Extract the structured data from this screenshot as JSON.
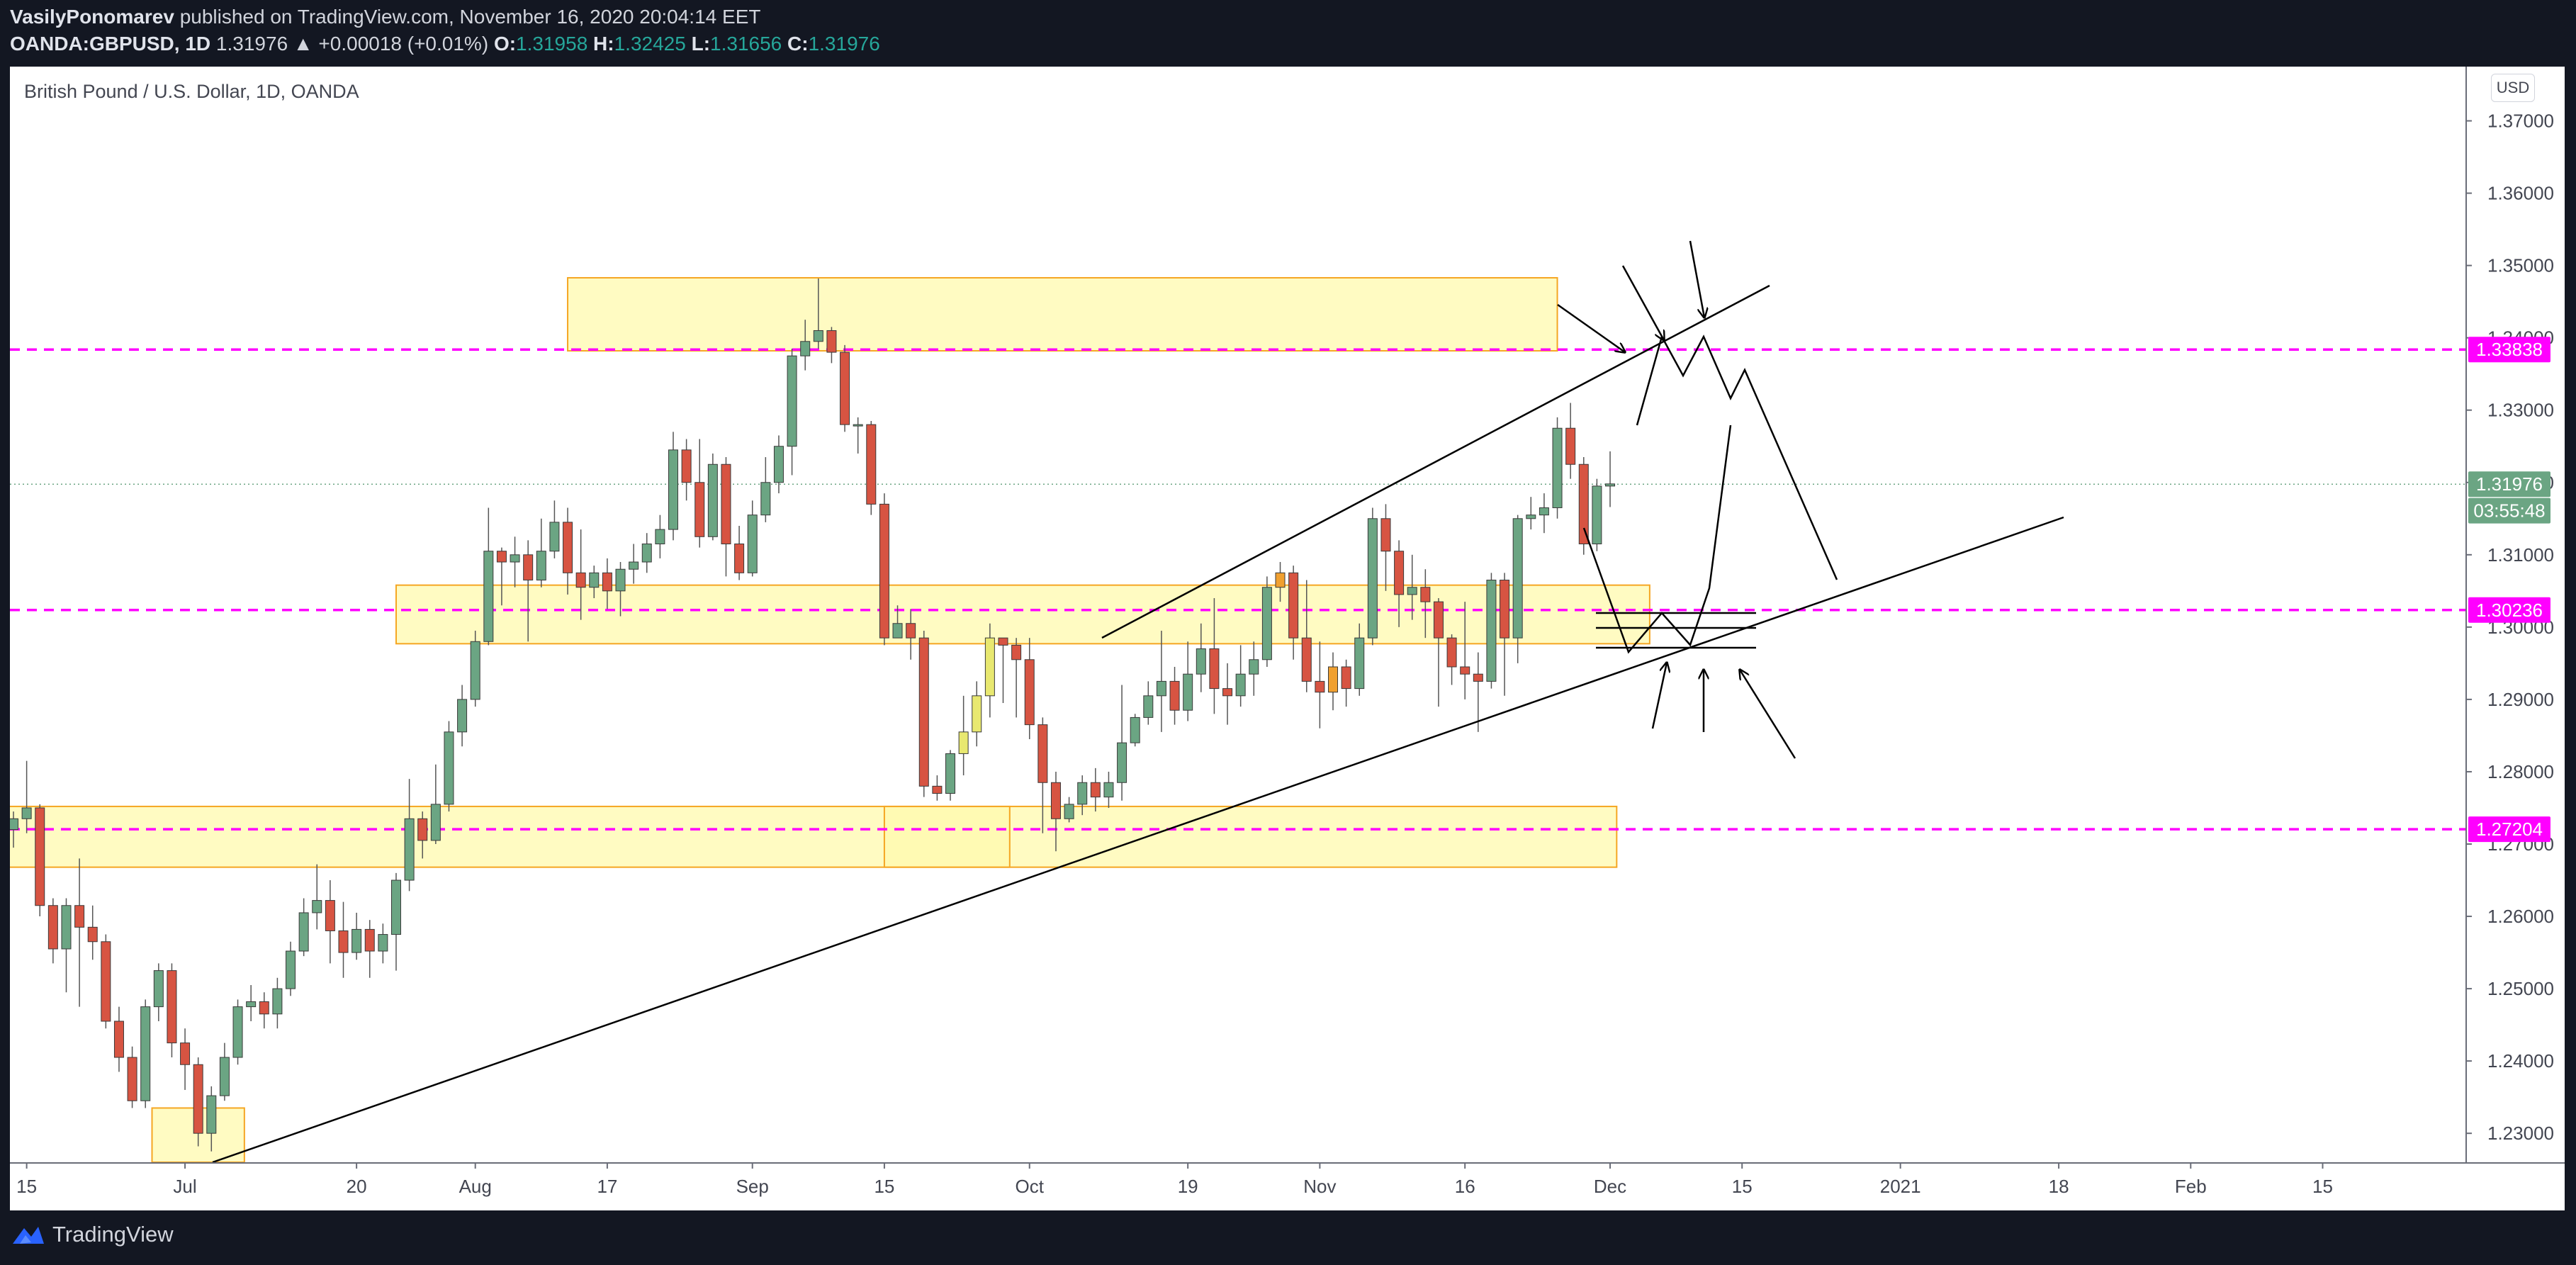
{
  "header": {
    "author": "VasilyPonomarev",
    "published": "published on TradingView.com, November 16, 2020 20:04:14 EET",
    "symbol": "OANDA:GBPUSD, 1D",
    "last": "1.31976",
    "change": "▲ +0.00018 (+0.01%)",
    "o_label": "O:",
    "o": "1.31958",
    "h_label": "H:",
    "h": "1.32425",
    "l_label": "L:",
    "l": "1.31656",
    "c_label": "C:",
    "c": "1.31976"
  },
  "chart_title": "British Pound / U.S. Dollar, 1D, OANDA",
  "currency_button": "USD",
  "footer": {
    "brand": "TradingView"
  },
  "colors": {
    "up": "#6ba583",
    "down": "#d75442",
    "accent_dashed": "#ff00ff",
    "zone_fill": "#fff9ad",
    "zone_border": "#f5a623",
    "orange_candle": "#f0a030",
    "yellow_candle": "#e8e870"
  },
  "chart_data": {
    "type": "candlestick",
    "ylim": [
      1.226,
      1.3775
    ],
    "y_ticks": [
      "1.23000",
      "1.24000",
      "1.25000",
      "1.26000",
      "1.27000",
      "1.28000",
      "1.29000",
      "1.30000",
      "1.31000",
      "1.32000",
      "1.33000",
      "1.34000",
      "1.35000",
      "1.36000",
      "1.37000"
    ],
    "x_ticks": [
      {
        "label": "15",
        "bar": 1
      },
      {
        "label": "Jul",
        "bar": 13
      },
      {
        "label": "20",
        "bar": 26
      },
      {
        "label": "Aug",
        "bar": 35
      },
      {
        "label": "17",
        "bar": 45
      },
      {
        "label": "Sep",
        "bar": 56
      },
      {
        "label": "15",
        "bar": 66
      },
      {
        "label": "Oct",
        "bar": 77
      },
      {
        "label": "19",
        "bar": 89
      },
      {
        "label": "Nov",
        "bar": 99
      },
      {
        "label": "16",
        "bar": 110
      },
      {
        "label": "Dec",
        "bar": 121
      },
      {
        "label": "15",
        "bar": 131
      },
      {
        "label": "2021",
        "bar": 143
      },
      {
        "label": "18",
        "bar": 155
      },
      {
        "label": "Feb",
        "bar": 165
      },
      {
        "label": "15",
        "bar": 175
      }
    ],
    "price_labels": [
      {
        "value": "1.33838",
        "price": 1.33838,
        "color": "#ff00ff"
      },
      {
        "value": "1.31976",
        "price": 1.31976,
        "color": "#6ba583"
      },
      {
        "value": "03:55:48",
        "price": 1.3161,
        "color": "#6ba583"
      },
      {
        "value": "1.30236",
        "price": 1.30236,
        "color": "#ff00ff"
      },
      {
        "value": "1.27204",
        "price": 1.27204,
        "color": "#ff00ff"
      }
    ],
    "dashed_levels": [
      1.33838,
      1.30236,
      1.27204
    ],
    "last_price": 1.31976,
    "zones": [
      {
        "b0": 42,
        "b1": 117,
        "p0": 1.3382,
        "p1": 1.3483
      },
      {
        "b0": 29,
        "b1": 124,
        "p0": 1.2977,
        "p1": 1.3058
      },
      {
        "b0": -1,
        "b1": 121.5,
        "p0": 1.2668,
        "p1": 1.2752
      },
      {
        "b0": 66,
        "b1": 75.5,
        "p0": 1.2668,
        "p1": 1.2752
      },
      {
        "b0": 10.5,
        "b1": 17.5,
        "p0": 1.226,
        "p1": 1.2335
      }
    ],
    "candles": [
      [
        1.272,
        1.2735,
        1.2695,
        1.2745
      ],
      [
        1.2735,
        1.275,
        1.2715,
        1.2815
      ],
      [
        1.275,
        1.2615,
        1.26,
        1.2755
      ],
      [
        1.2615,
        1.2555,
        1.2535,
        1.2625
      ],
      [
        1.2555,
        1.2615,
        1.2495,
        1.2625
      ],
      [
        1.2615,
        1.2585,
        1.2475,
        1.268
      ],
      [
        1.2585,
        1.2565,
        1.254,
        1.2615
      ],
      [
        1.2565,
        1.2455,
        1.2445,
        1.2575
      ],
      [
        1.2455,
        1.2405,
        1.2385,
        1.2475
      ],
      [
        1.2405,
        1.2345,
        1.2335,
        1.242
      ],
      [
        1.2345,
        1.2475,
        1.2335,
        1.2485
      ],
      [
        1.2475,
        1.2525,
        1.2455,
        1.2535
      ],
      [
        1.2525,
        1.2425,
        1.2405,
        1.2535
      ],
      [
        1.2425,
        1.2395,
        1.236,
        1.2445
      ],
      [
        1.2395,
        1.23,
        1.2282,
        1.2405
      ],
      [
        1.23,
        1.2352,
        1.2275,
        1.2365
      ],
      [
        1.2352,
        1.2405,
        1.2345,
        1.2425
      ],
      [
        1.2405,
        1.2475,
        1.2395,
        1.2485
      ],
      [
        1.2475,
        1.2482,
        1.2455,
        1.2505
      ],
      [
        1.2482,
        1.2465,
        1.2445,
        1.2495
      ],
      [
        1.2465,
        1.25,
        1.2445,
        1.2515
      ],
      [
        1.25,
        1.2552,
        1.249,
        1.2565
      ],
      [
        1.2552,
        1.2605,
        1.2545,
        1.2625
      ],
      [
        1.2605,
        1.2622,
        1.2582,
        1.2672
      ],
      [
        1.2622,
        1.258,
        1.2535,
        1.265
      ],
      [
        1.258,
        1.255,
        1.2515,
        1.262
      ],
      [
        1.255,
        1.2582,
        1.254,
        1.2605
      ],
      [
        1.2582,
        1.2552,
        1.2515,
        1.2595
      ],
      [
        1.2552,
        1.2575,
        1.2535,
        1.259
      ],
      [
        1.2575,
        1.265,
        1.2525,
        1.266
      ],
      [
        1.265,
        1.2735,
        1.2635,
        1.279
      ],
      [
        1.2735,
        1.2705,
        1.268,
        1.2745
      ],
      [
        1.2705,
        1.2755,
        1.27,
        1.281
      ],
      [
        1.2755,
        1.2855,
        1.2745,
        1.287
      ],
      [
        1.2855,
        1.29,
        1.2835,
        1.292
      ],
      [
        1.29,
        1.298,
        1.289,
        1.2995
      ],
      [
        1.298,
        1.3105,
        1.2975,
        1.3165
      ],
      [
        1.3105,
        1.309,
        1.303,
        1.311
      ],
      [
        1.309,
        1.31,
        1.3055,
        1.3125
      ],
      [
        1.31,
        1.3065,
        1.298,
        1.312
      ],
      [
        1.3065,
        1.3105,
        1.3055,
        1.315
      ],
      [
        1.3105,
        1.3145,
        1.3095,
        1.3175
      ],
      [
        1.3145,
        1.3075,
        1.3045,
        1.3165
      ],
      [
        1.3075,
        1.3055,
        1.301,
        1.3135
      ],
      [
        1.3055,
        1.3075,
        1.304,
        1.3085
      ],
      [
        1.3075,
        1.305,
        1.3025,
        1.3095
      ],
      [
        1.305,
        1.308,
        1.3015,
        1.309
      ],
      [
        1.308,
        1.309,
        1.306,
        1.3115
      ],
      [
        1.309,
        1.3115,
        1.3075,
        1.313
      ],
      [
        1.3115,
        1.3135,
        1.3095,
        1.3155
      ],
      [
        1.3135,
        1.3245,
        1.312,
        1.327
      ],
      [
        1.3245,
        1.32,
        1.3175,
        1.326
      ],
      [
        1.32,
        1.3125,
        1.311,
        1.326
      ],
      [
        1.3125,
        1.3225,
        1.312,
        1.324
      ],
      [
        1.3225,
        1.3115,
        1.307,
        1.3235
      ],
      [
        1.3115,
        1.3075,
        1.3065,
        1.314
      ],
      [
        1.3075,
        1.3155,
        1.307,
        1.3175
      ],
      [
        1.3155,
        1.32,
        1.3145,
        1.3235
      ],
      [
        1.32,
        1.325,
        1.3185,
        1.3265
      ],
      [
        1.325,
        1.3375,
        1.321,
        1.3385
      ],
      [
        1.3375,
        1.3395,
        1.3355,
        1.3425
      ],
      [
        1.3395,
        1.341,
        1.3385,
        1.3482
      ],
      [
        1.341,
        1.338,
        1.3365,
        1.3415
      ],
      [
        1.338,
        1.328,
        1.327,
        1.339
      ],
      [
        1.328,
        1.328,
        1.324,
        1.329
      ],
      [
        1.328,
        1.317,
        1.3155,
        1.3285
      ],
      [
        1.317,
        1.2985,
        1.2975,
        1.3185
      ],
      [
        1.2985,
        1.3005,
        1.2985,
        1.303
      ],
      [
        1.3005,
        1.2985,
        1.2955,
        1.3025
      ],
      [
        1.2985,
        1.278,
        1.2765,
        1.2995
      ],
      [
        1.278,
        1.277,
        1.276,
        1.2795
      ],
      [
        1.277,
        1.2825,
        1.276,
        1.283
      ],
      [
        1.2825,
        1.2855,
        1.2795,
        1.2905
      ],
      [
        1.2855,
        1.2905,
        1.2835,
        1.2925
      ],
      [
        1.2905,
        1.2985,
        1.2875,
        1.3005
      ],
      [
        1.2985,
        1.2975,
        1.2895,
        1.2985
      ],
      [
        1.2975,
        1.2955,
        1.2875,
        1.2985
      ],
      [
        1.2955,
        1.2865,
        1.2845,
        1.2985
      ],
      [
        1.2865,
        1.2785,
        1.2715,
        1.2875
      ],
      [
        1.2785,
        1.2735,
        1.269,
        1.28
      ],
      [
        1.2735,
        1.2755,
        1.273,
        1.2765
      ],
      [
        1.2755,
        1.2785,
        1.274,
        1.2795
      ],
      [
        1.2785,
        1.2765,
        1.2745,
        1.2805
      ],
      [
        1.2765,
        1.2785,
        1.275,
        1.28
      ],
      [
        1.2785,
        1.284,
        1.276,
        1.292
      ],
      [
        1.284,
        1.2875,
        1.2835,
        1.288
      ],
      [
        1.2875,
        1.2905,
        1.2865,
        1.2925
      ],
      [
        1.2905,
        1.2925,
        1.2855,
        1.2995
      ],
      [
        1.2925,
        1.2885,
        1.2865,
        1.2945
      ],
      [
        1.2885,
        1.2935,
        1.287,
        1.298
      ],
      [
        1.2935,
        1.297,
        1.291,
        1.3005
      ],
      [
        1.297,
        1.2915,
        1.288,
        1.304
      ],
      [
        1.2915,
        1.2905,
        1.2865,
        1.295
      ],
      [
        1.2905,
        1.2935,
        1.289,
        1.2975
      ],
      [
        1.2935,
        1.2955,
        1.2905,
        1.298
      ],
      [
        1.2955,
        1.3055,
        1.2945,
        1.307
      ],
      [
        1.3055,
        1.3075,
        1.3035,
        1.309
      ],
      [
        1.3075,
        1.2985,
        1.2955,
        1.3085
      ],
      [
        1.2985,
        1.2925,
        1.291,
        1.3065
      ],
      [
        1.2925,
        1.291,
        1.286,
        1.298
      ],
      [
        1.291,
        1.2945,
        1.2885,
        1.2965
      ],
      [
        1.2945,
        1.2915,
        1.289,
        1.2955
      ],
      [
        1.2915,
        1.2985,
        1.2905,
        1.3005
      ],
      [
        1.2985,
        1.315,
        1.2975,
        1.3165
      ],
      [
        1.315,
        1.3105,
        1.305,
        1.317
      ],
      [
        1.3105,
        1.3045,
        1.3,
        1.312
      ],
      [
        1.3045,
        1.3055,
        1.301,
        1.31
      ],
      [
        1.3055,
        1.3035,
        1.2985,
        1.308
      ],
      [
        1.3035,
        1.2985,
        1.289,
        1.304
      ],
      [
        1.2985,
        1.2945,
        1.292,
        1.299
      ],
      [
        1.2945,
        1.2935,
        1.29,
        1.3035
      ],
      [
        1.2935,
        1.2925,
        1.2855,
        1.2965
      ],
      [
        1.2925,
        1.3065,
        1.2915,
        1.3075
      ],
      [
        1.3065,
        1.2985,
        1.2905,
        1.3075
      ],
      [
        1.2985,
        1.315,
        1.295,
        1.3155
      ],
      [
        1.315,
        1.3155,
        1.3135,
        1.318
      ],
      [
        1.3155,
        1.3165,
        1.313,
        1.3185
      ],
      [
        1.3165,
        1.3275,
        1.315,
        1.329
      ],
      [
        1.3275,
        1.3225,
        1.3205,
        1.331
      ],
      [
        1.3225,
        1.3115,
        1.31,
        1.3235
      ],
      [
        1.3115,
        1.3195,
        1.3105,
        1.3205
      ],
      [
        1.3195,
        1.3198,
        1.3166,
        1.3243
      ]
    ],
    "highlight": {
      "orange": [
        96,
        100
      ],
      "yellow": [
        72,
        73,
        74
      ]
    }
  }
}
